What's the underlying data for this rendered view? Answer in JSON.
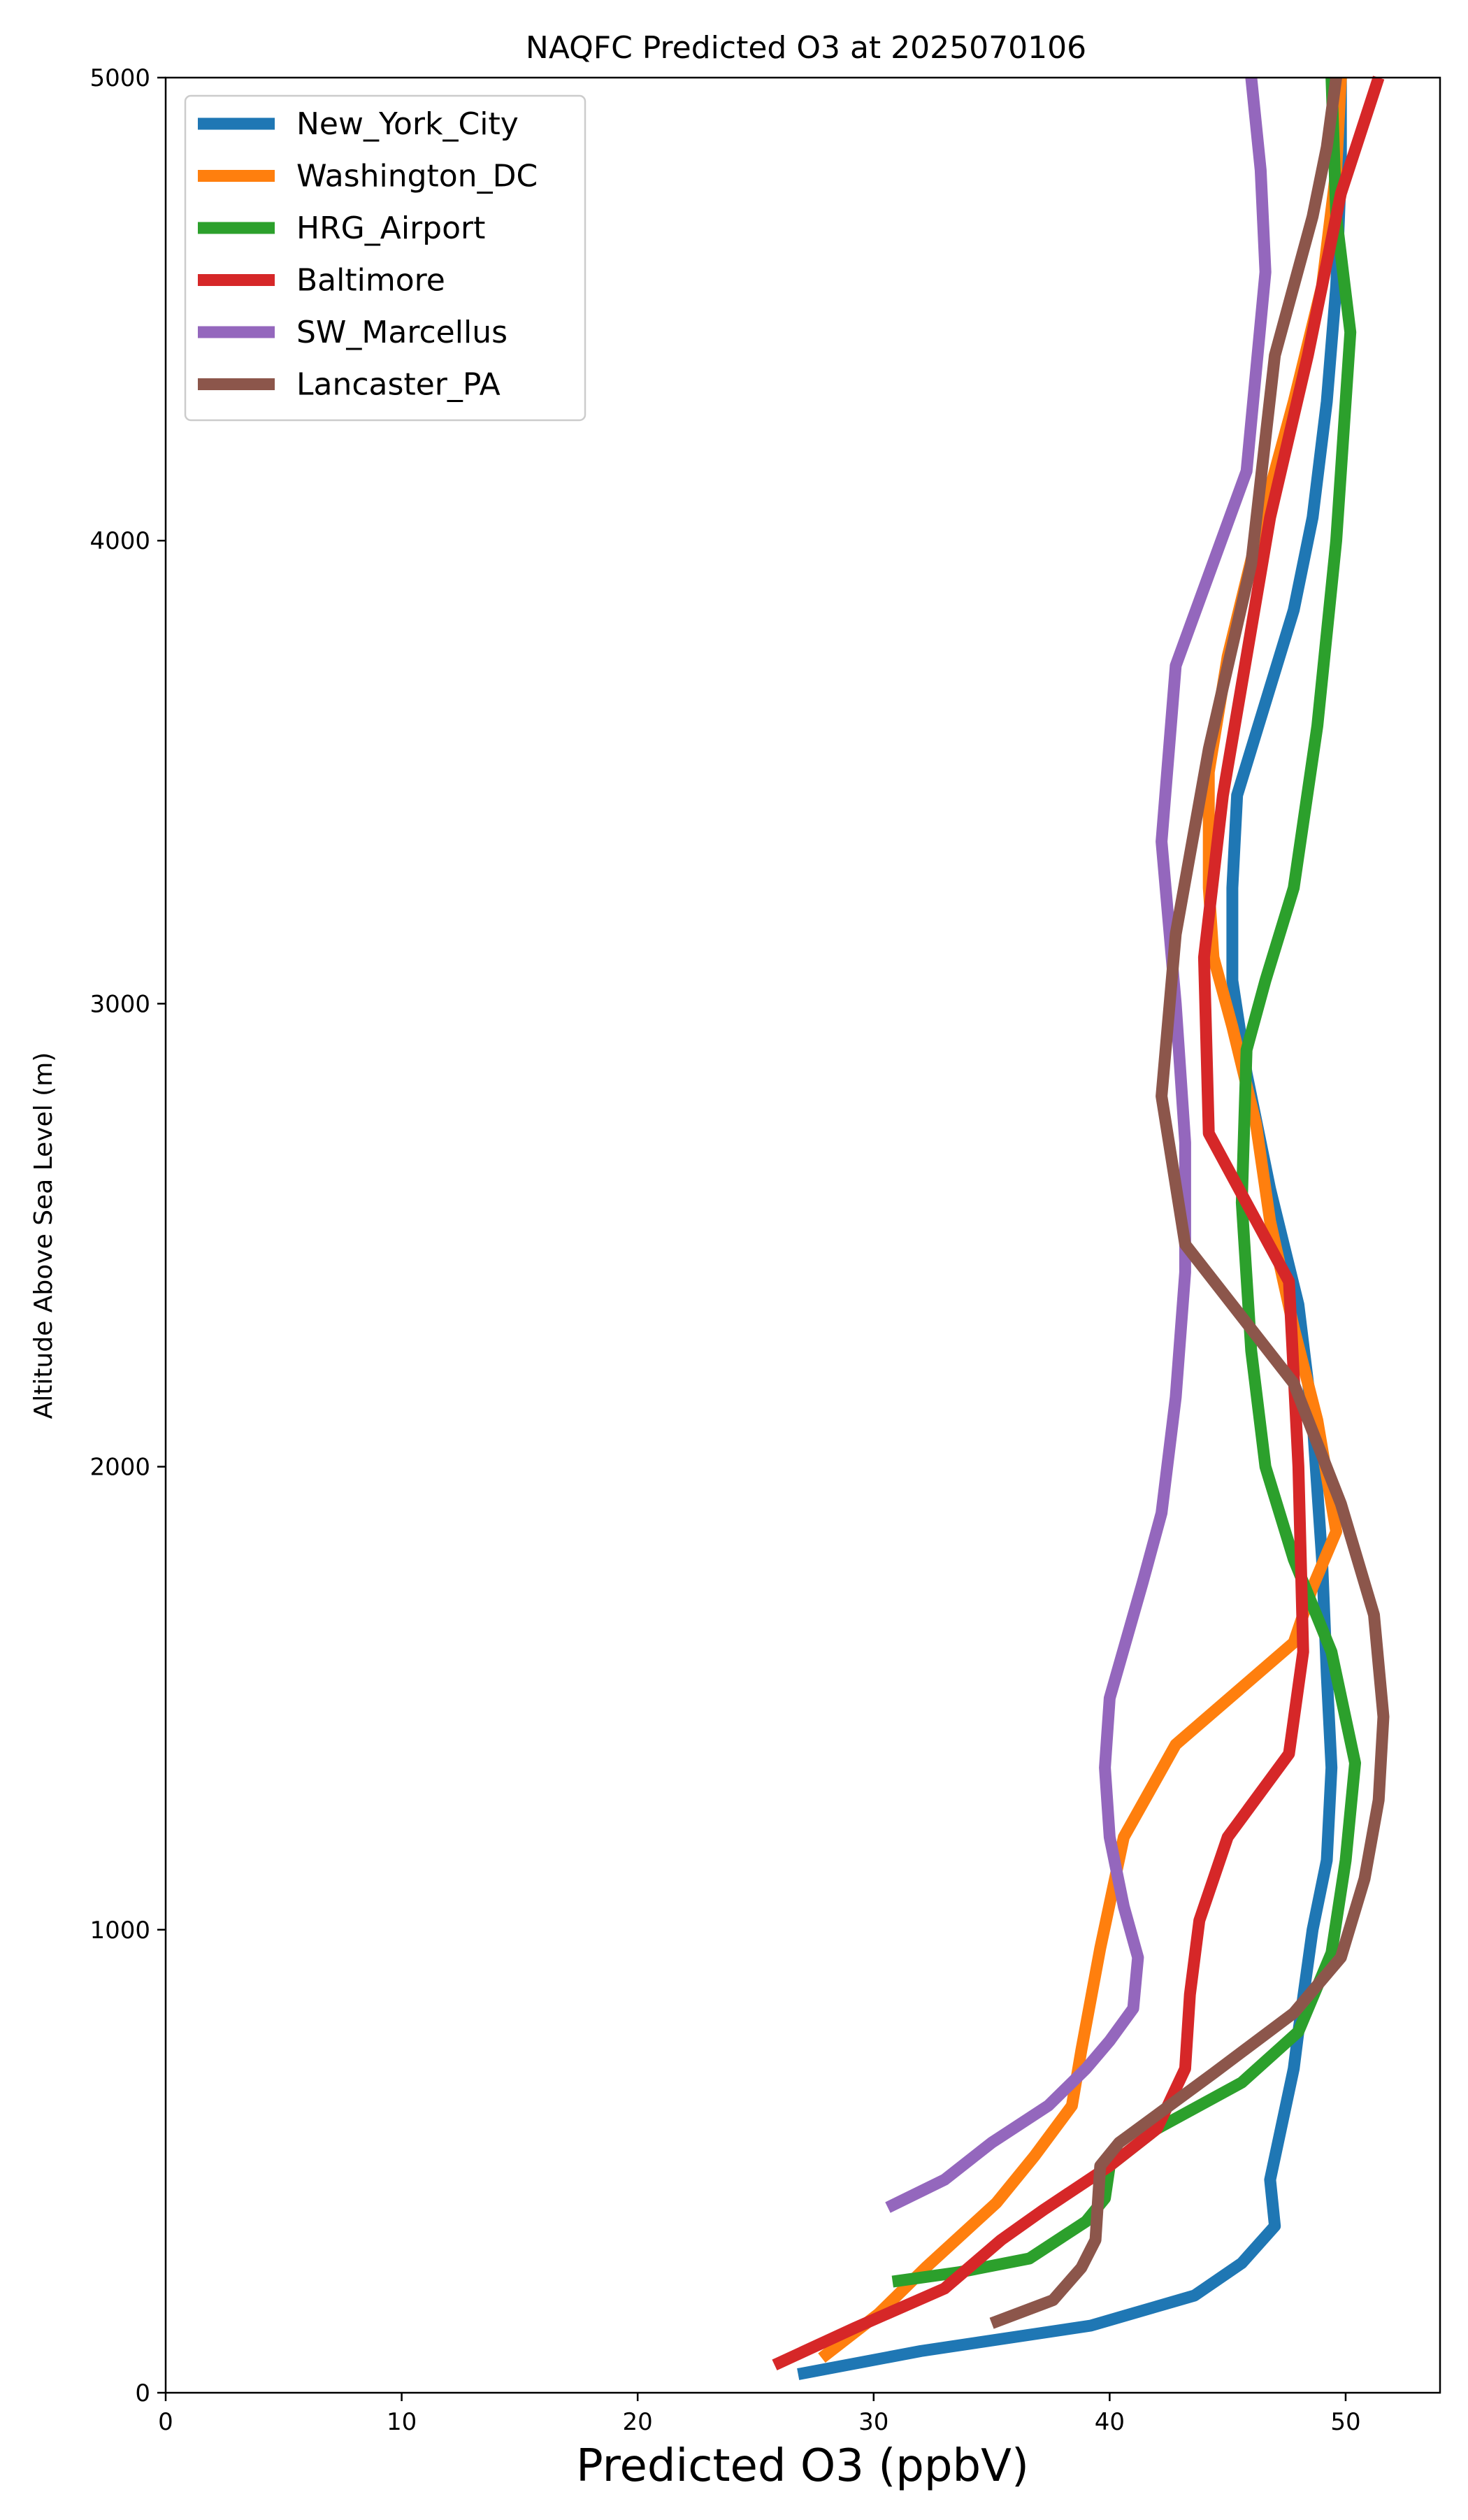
{
  "chart_data": {
    "type": "line",
    "title": "NAQFC Predicted O3 at 2025070106",
    "xlabel": "Predicted O3 (ppbV)",
    "ylabel": "Altitude Above Sea Level (m)",
    "xlim": [
      0,
      54
    ],
    "ylim": [
      0,
      5000
    ],
    "xticks": [
      0,
      10,
      20,
      30,
      40,
      50
    ],
    "yticks": [
      0,
      1000,
      2000,
      3000,
      4000,
      5000
    ],
    "grid": false,
    "legend_position": "top-left",
    "series": [
      {
        "name": "New_York_City",
        "color": "#1f77b4",
        "points": [
          [
            26.8,
            40
          ],
          [
            32,
            90
          ],
          [
            39.2,
            145
          ],
          [
            43.6,
            210
          ],
          [
            45.6,
            280
          ],
          [
            47,
            360
          ],
          [
            46.8,
            460
          ],
          [
            47.8,
            700
          ],
          [
            48,
            780
          ],
          [
            48.6,
            1000
          ],
          [
            49.2,
            1150
          ],
          [
            49.4,
            1350
          ],
          [
            49.2,
            1550
          ],
          [
            49,
            1800
          ],
          [
            48.6,
            2100
          ],
          [
            48,
            2350
          ],
          [
            46.8,
            2600
          ],
          [
            45.8,
            2850
          ],
          [
            45.2,
            3050
          ],
          [
            45.2,
            3250
          ],
          [
            45.4,
            3450
          ],
          [
            46.6,
            3650
          ],
          [
            47.8,
            3850
          ],
          [
            48.6,
            4050
          ],
          [
            49.2,
            4300
          ],
          [
            49.6,
            4550
          ],
          [
            49.8,
            4800
          ],
          [
            49.8,
            5000
          ]
        ]
      },
      {
        "name": "Washington_DC",
        "color": "#ff7f0e",
        "points": [
          [
            27.8,
            75
          ],
          [
            30.2,
            170
          ],
          [
            32.2,
            270
          ],
          [
            35.2,
            410
          ],
          [
            36.8,
            510
          ],
          [
            38.4,
            620
          ],
          [
            38.8,
            740
          ],
          [
            39.6,
            960
          ],
          [
            40.6,
            1200
          ],
          [
            42.8,
            1400
          ],
          [
            47.8,
            1620
          ],
          [
            48.6,
            1740
          ],
          [
            49.6,
            1860
          ],
          [
            48.8,
            2100
          ],
          [
            47.8,
            2300
          ],
          [
            46.8,
            2530
          ],
          [
            46.2,
            2740
          ],
          [
            45.2,
            2950
          ],
          [
            44.4,
            3100
          ],
          [
            44.2,
            3250
          ],
          [
            44.2,
            3500
          ],
          [
            45,
            3750
          ],
          [
            46.2,
            4000
          ],
          [
            47.8,
            4300
          ],
          [
            49,
            4550
          ],
          [
            49.6,
            4800
          ],
          [
            49.8,
            5000
          ]
        ]
      },
      {
        "name": "HRG_Airport",
        "color": "#2ca02c",
        "points": [
          [
            30.8,
            240
          ],
          [
            33.6,
            260
          ],
          [
            36.6,
            290
          ],
          [
            39,
            370
          ],
          [
            39.8,
            420
          ],
          [
            40,
            490
          ],
          [
            42,
            570
          ],
          [
            45.6,
            670
          ],
          [
            48,
            780
          ],
          [
            49.4,
            950
          ],
          [
            50,
            1150
          ],
          [
            50.4,
            1360
          ],
          [
            49.4,
            1600
          ],
          [
            47.8,
            1800
          ],
          [
            46.6,
            2000
          ],
          [
            46,
            2250
          ],
          [
            45.6,
            2570
          ],
          [
            45.8,
            2900
          ],
          [
            46.6,
            3050
          ],
          [
            47.8,
            3250
          ],
          [
            48.8,
            3600
          ],
          [
            49.6,
            4000
          ],
          [
            50.2,
            4450
          ],
          [
            49.6,
            4700
          ],
          [
            49.4,
            5000
          ]
        ]
      },
      {
        "name": "Baltimore",
        "color": "#d62728",
        "points": [
          [
            25.8,
            60
          ],
          [
            29.2,
            140
          ],
          [
            33,
            225
          ],
          [
            35.4,
            330
          ],
          [
            37.2,
            395
          ],
          [
            40,
            490
          ],
          [
            42,
            570
          ],
          [
            43.2,
            700
          ],
          [
            43.4,
            860
          ],
          [
            43.8,
            1020
          ],
          [
            45,
            1200
          ],
          [
            47.6,
            1380
          ],
          [
            48.2,
            1600
          ],
          [
            48,
            2000
          ],
          [
            47.6,
            2400
          ],
          [
            44.2,
            2720
          ],
          [
            44,
            3100
          ],
          [
            44.8,
            3450
          ],
          [
            45.8,
            3750
          ],
          [
            46.8,
            4050
          ],
          [
            48.4,
            4400
          ],
          [
            49.8,
            4750
          ],
          [
            51.4,
            5000
          ]
        ]
      },
      {
        "name": "SW_Marcellus",
        "color": "#9467bd",
        "points": [
          [
            30.6,
            400
          ],
          [
            33,
            460
          ],
          [
            35,
            540
          ],
          [
            37.4,
            620
          ],
          [
            39,
            700
          ],
          [
            40,
            760
          ],
          [
            41,
            830
          ],
          [
            41.2,
            940
          ],
          [
            40.6,
            1050
          ],
          [
            40,
            1200
          ],
          [
            39.8,
            1350
          ],
          [
            40,
            1500
          ],
          [
            41.4,
            1750
          ],
          [
            42.2,
            1900
          ],
          [
            42.8,
            2150
          ],
          [
            43.2,
            2420
          ],
          [
            43.2,
            2700
          ],
          [
            42.8,
            3000
          ],
          [
            42.2,
            3350
          ],
          [
            42.8,
            3730
          ],
          [
            45.8,
            4150
          ],
          [
            46.6,
            4580
          ],
          [
            46.4,
            4800
          ],
          [
            46,
            5000
          ]
        ]
      },
      {
        "name": "Lancaster_PA",
        "color": "#8c564b",
        "points": [
          [
            35,
            150
          ],
          [
            37.6,
            200
          ],
          [
            38.8,
            270
          ],
          [
            39.4,
            330
          ],
          [
            39.6,
            490
          ],
          [
            40.4,
            540
          ],
          [
            42,
            600
          ],
          [
            44.4,
            690
          ],
          [
            47.8,
            820
          ],
          [
            49.8,
            940
          ],
          [
            50.8,
            1110
          ],
          [
            51.4,
            1280
          ],
          [
            51.6,
            1460
          ],
          [
            51.2,
            1680
          ],
          [
            49.8,
            1920
          ],
          [
            47.8,
            2180
          ],
          [
            43.2,
            2480
          ],
          [
            42.2,
            2800
          ],
          [
            42.8,
            3150
          ],
          [
            44.2,
            3550
          ],
          [
            46,
            3950
          ],
          [
            47,
            4400
          ],
          [
            48.6,
            4700
          ],
          [
            49.2,
            4850
          ],
          [
            49.6,
            5000
          ]
        ]
      }
    ]
  }
}
